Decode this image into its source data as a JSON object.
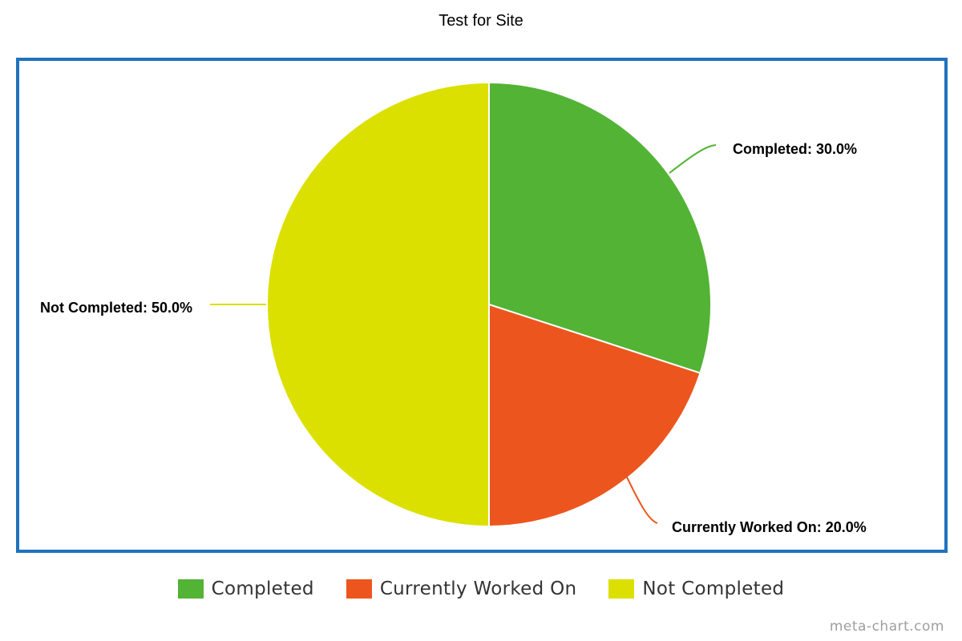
{
  "chart_data": {
    "type": "pie",
    "title": "Test for Site",
    "slices": [
      {
        "name": "Completed",
        "value": 30.0,
        "label": "Completed: 30.0%",
        "color": "#52b335"
      },
      {
        "name": "Currently Worked On",
        "value": 20.0,
        "label": "Currently Worked On: 20.0%",
        "color": "#ec561e"
      },
      {
        "name": "Not Completed",
        "value": 50.0,
        "label": "Not Completed: 50.0%",
        "color": "#dbe000"
      }
    ],
    "start_angle": "12 o'clock",
    "direction": "clockwise",
    "legend_position": "bottom"
  },
  "frame": {
    "border_color": "#1e73be"
  },
  "watermark": "meta-chart.com"
}
